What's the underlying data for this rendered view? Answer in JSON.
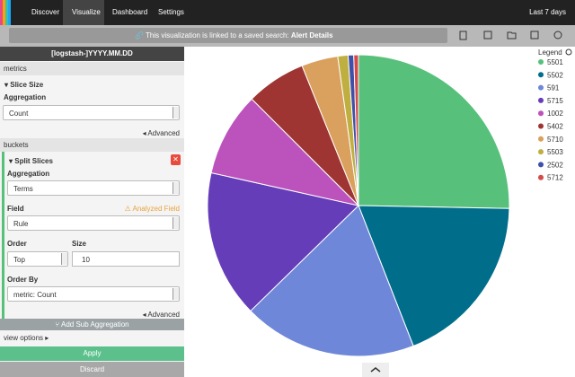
{
  "nav": {
    "items": [
      "Discover",
      "Visualize",
      "Dashboard",
      "Settings"
    ],
    "time": "Last 7 days"
  },
  "toolbar": {
    "notice": "This visualization is linked to a saved search:",
    "search": "Alert Details"
  },
  "sidebar": {
    "index": "[logstash-]YYYY.MM.DD",
    "metrics": {
      "heading": "metrics",
      "title": "Slice Size",
      "aggregation_label": "Aggregation",
      "aggregation": "Count",
      "advanced": "Advanced"
    },
    "buckets": {
      "heading": "buckets",
      "title": "Split Slices",
      "aggregation_label": "Aggregation",
      "aggregation": "Terms",
      "field_label": "Field",
      "field_warning": "Analyzed Field",
      "field": "Rule",
      "order_label": "Order",
      "order": "Top",
      "size_label": "Size",
      "size": "10",
      "order_by_label": "Order By",
      "order_by": "metric: Count",
      "advanced": "Advanced",
      "add_sub": "Add Sub Aggregation"
    },
    "view_options": "view options",
    "apply": "Apply",
    "discard": "Discard"
  },
  "chart_data": {
    "type": "pie",
    "legend_title": "Legend",
    "categories": [
      "5501",
      "5502",
      "591",
      "5715",
      "1002",
      "5402",
      "5710",
      "5503",
      "2502",
      "5712"
    ],
    "values": [
      25.3,
      18.75,
      18.6,
      15.8,
      9,
      6.4,
      3.9,
      1.1,
      0.6,
      0.5
    ],
    "colors": [
      "#57c17b",
      "#006e8a",
      "#6f87d8",
      "#663db8",
      "#bc52bc",
      "#9e3533",
      "#daa05d",
      "#bfaf40",
      "#4050a8",
      "#d34a4a"
    ]
  }
}
